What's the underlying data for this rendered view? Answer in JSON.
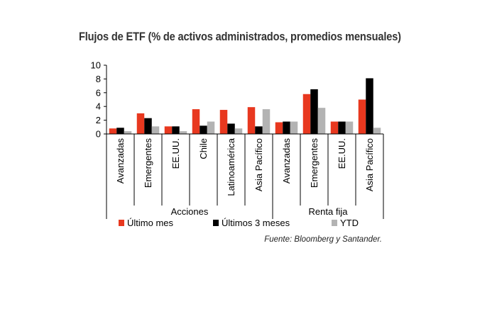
{
  "title": "Flujos de ETF (% de activos administrados, promedios mensuales)",
  "source": "Fuente: Bloomberg y Santander.",
  "chart_data": {
    "type": "bar",
    "ylim": [
      0,
      10
    ],
    "yticks": [
      0,
      2,
      4,
      6,
      8,
      10
    ],
    "categories": [
      "Avanzadas",
      "Emergentes",
      "EE.UU.",
      "Chile",
      "Latinoamérica",
      "Asia Pacífico",
      "Avanzadas",
      "Emergentes",
      "EE.UU.",
      "Asia Pacífico"
    ],
    "groups": [
      {
        "label": "Acciones",
        "start": 0,
        "end": 5
      },
      {
        "label": "Renta fija",
        "start": 6,
        "end": 9
      }
    ],
    "series": [
      {
        "name": "Último mes",
        "color": "#e8381f",
        "values": [
          0.8,
          3.0,
          1.1,
          3.6,
          3.5,
          3.9,
          1.7,
          5.8,
          1.8,
          5.0
        ]
      },
      {
        "name": "Últimos 3 meses",
        "color": "#000000",
        "values": [
          0.9,
          2.3,
          1.1,
          1.2,
          1.5,
          1.1,
          1.8,
          6.5,
          1.8,
          8.1
        ]
      },
      {
        "name": "YTD",
        "color": "#b3b3b3",
        "values": [
          0.4,
          1.1,
          0.4,
          1.8,
          0.8,
          3.6,
          1.8,
          3.8,
          1.8,
          0.9
        ]
      }
    ],
    "legend_position": "bottom",
    "grid": false
  }
}
